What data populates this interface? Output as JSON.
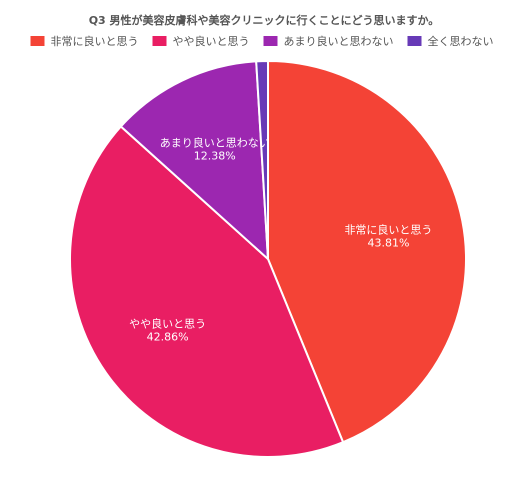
{
  "chart_data": {
    "type": "pie",
    "title": "Q3 男性が美容皮膚科や美容クリニックに行くことにどう思いますか。",
    "legend_position": "top",
    "slices": [
      {
        "label": "非常に良いと思う",
        "value": 43.81,
        "value_label": "43.81%",
        "color": "#f44336"
      },
      {
        "label": "やや良いと思う",
        "value": 42.86,
        "value_label": "42.86%",
        "color": "#e91e63"
      },
      {
        "label": "あまり良いと思わない",
        "value": 12.38,
        "value_label": "12.38%",
        "color": "#9c27b0"
      },
      {
        "label": "全く思わない",
        "value": 0.95,
        "value_label": "",
        "color": "#673ab7"
      }
    ]
  }
}
